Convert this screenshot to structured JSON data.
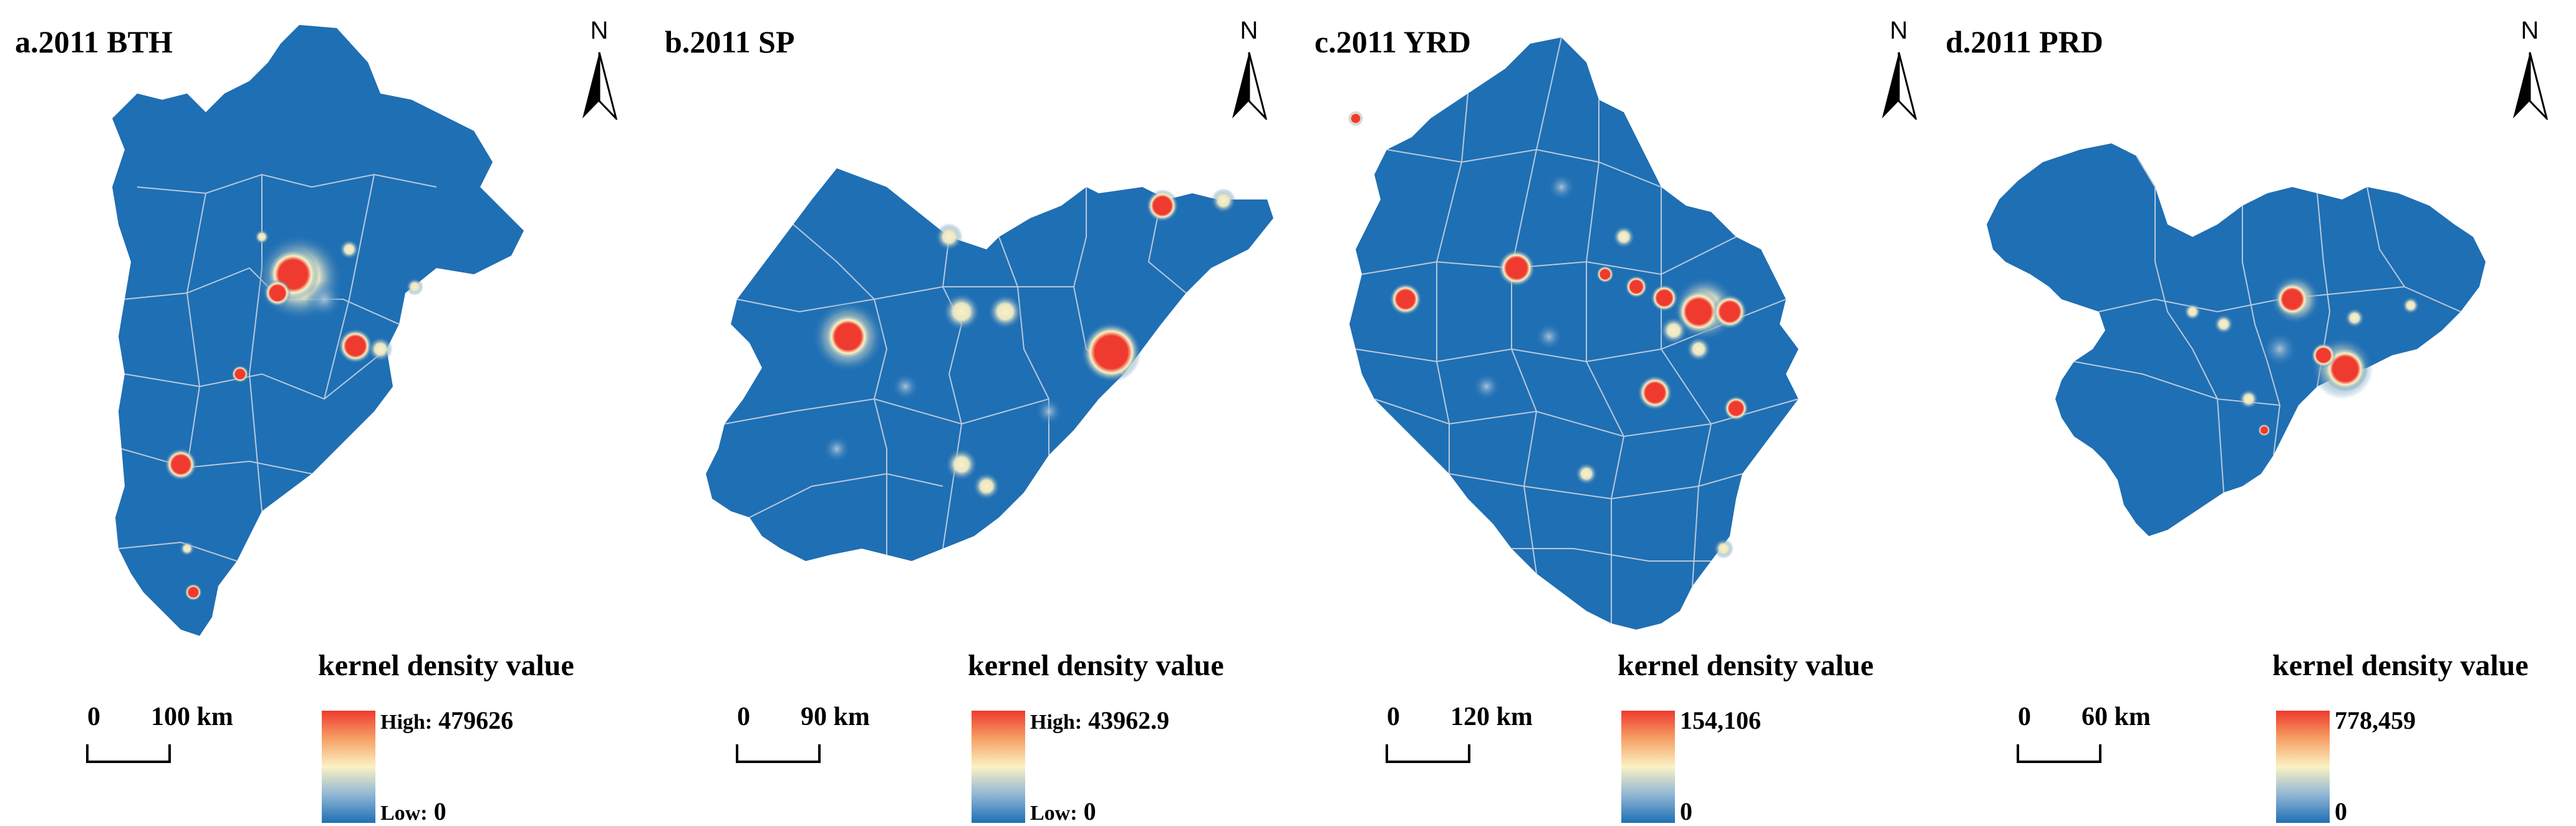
{
  "colors": {
    "base": "#1f6fb4",
    "border": "#b9c9dc",
    "ramp": [
      "#ef3a2f",
      "#f6a064",
      "#fbf2c4",
      "#8fb6d4",
      "#1f6fb4"
    ]
  },
  "north_label": "N",
  "legend_title": "kernel density value",
  "panels": [
    {
      "id": "a",
      "title": "a.2011 BTH",
      "scale": {
        "zero": "0",
        "distance": "100 km"
      },
      "legend": {
        "high_prefix": "High:",
        "high_value": "479626",
        "low_prefix": "Low:",
        "low_value": "0"
      }
    },
    {
      "id": "b",
      "title": "b.2011 SP",
      "scale": {
        "zero": "0",
        "distance": "90 km"
      },
      "legend": {
        "high_prefix": "High:",
        "high_value": "43962.9",
        "low_prefix": "Low:",
        "low_value": "0"
      }
    },
    {
      "id": "c",
      "title": "c.2011 YRD",
      "scale": {
        "zero": "0",
        "distance": "120 km"
      },
      "legend": {
        "high_prefix": "",
        "high_value": "154,106",
        "low_prefix": "",
        "low_value": "0"
      }
    },
    {
      "id": "d",
      "title": "d.2011 PRD",
      "scale": {
        "zero": "0",
        "distance": "60 km"
      },
      "legend": {
        "high_prefix": "",
        "high_value": "778,459",
        "low_prefix": "",
        "low_value": "0"
      }
    }
  ]
}
